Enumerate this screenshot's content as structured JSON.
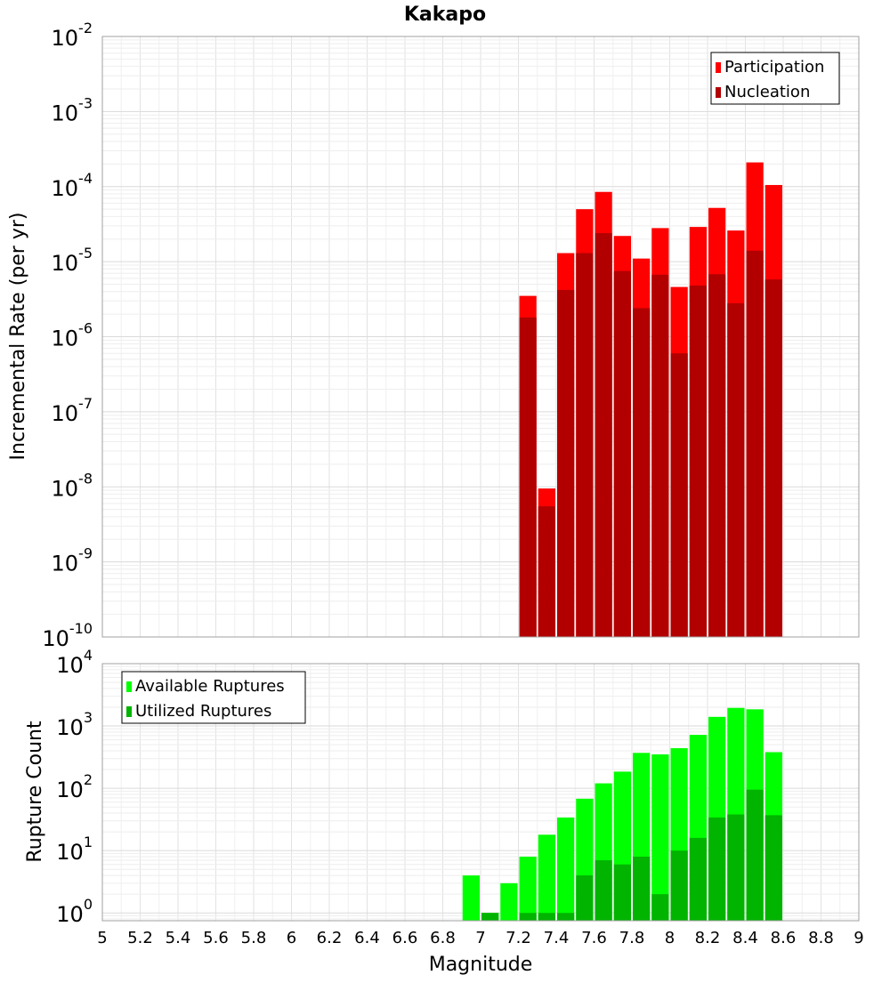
{
  "chart_data": [
    {
      "type": "bar",
      "title": "Kakapo",
      "ylabel": "Incremental Rate (per yr)",
      "yscale": "log",
      "ylim": [
        1e-10,
        0.01
      ],
      "xlim": [
        5,
        9
      ],
      "bin_width": 0.1,
      "legend_position": "top-right",
      "series": [
        {
          "name": "Participation",
          "color": "#ff0000",
          "x": [
            7.25,
            7.35,
            7.45,
            7.55,
            7.65,
            7.75,
            7.85,
            7.95,
            8.05,
            8.15,
            8.25,
            8.35,
            8.45,
            8.55
          ],
          "values": [
            3.5e-06,
            9.5e-09,
            1.3e-05,
            5e-05,
            8.5e-05,
            2.2e-05,
            1.1e-05,
            2.8e-05,
            4.6e-06,
            2.9e-05,
            5.2e-05,
            2.6e-05,
            0.00021,
            0.000105
          ]
        },
        {
          "name": "Nucleation",
          "color": "#b20000",
          "x": [
            7.25,
            7.35,
            7.45,
            7.55,
            7.65,
            7.75,
            7.85,
            7.95,
            8.05,
            8.15,
            8.25,
            8.35,
            8.45,
            8.55
          ],
          "values": [
            1.8e-06,
            5.5e-09,
            4.2e-06,
            1.3e-05,
            2.4e-05,
            7.5e-06,
            2.4e-06,
            6.7e-06,
            6e-07,
            4.8e-06,
            6.8e-06,
            2.8e-06,
            1.4e-05,
            5.8e-06
          ]
        }
      ],
      "yticks": [
        {
          "base": "10",
          "exp": "-2"
        },
        {
          "base": "10",
          "exp": "-3"
        },
        {
          "base": "10",
          "exp": "-4"
        },
        {
          "base": "10",
          "exp": "-5"
        },
        {
          "base": "10",
          "exp": "-6"
        },
        {
          "base": "10",
          "exp": "-7"
        },
        {
          "base": "10",
          "exp": "-8"
        },
        {
          "base": "10",
          "exp": "-9"
        },
        {
          "base": "10",
          "exp": "-10"
        }
      ],
      "grid": true
    },
    {
      "type": "bar",
      "ylabel": "Rupture Count",
      "xlabel": "Magnitude",
      "yscale": "log",
      "ylim": [
        0.75,
        10000
      ],
      "xlim": [
        5,
        9
      ],
      "bin_width": 0.1,
      "legend_position": "top-left",
      "series": [
        {
          "name": "Available Ruptures",
          "color": "#00ff00",
          "x": [
            6.95,
            7.05,
            7.15,
            7.25,
            7.35,
            7.45,
            7.55,
            7.65,
            7.75,
            7.85,
            7.95,
            8.05,
            8.15,
            8.25,
            8.35,
            8.45,
            8.55
          ],
          "values": [
            4,
            1,
            3,
            8,
            18,
            34,
            68,
            120,
            185,
            370,
            350,
            440,
            720,
            1400,
            1950,
            1850,
            380
          ]
        },
        {
          "name": "Utilized Ruptures",
          "color": "#00b400",
          "x": [
            7.05,
            7.25,
            7.35,
            7.45,
            7.55,
            7.65,
            7.75,
            7.85,
            7.95,
            8.05,
            8.15,
            8.25,
            8.35,
            8.45,
            8.55
          ],
          "values": [
            1,
            1,
            1,
            1,
            4,
            7,
            6,
            8,
            2,
            10,
            16,
            34,
            38,
            95,
            37
          ]
        }
      ],
      "yticks": [
        {
          "base": "10",
          "exp": "4"
        },
        {
          "base": "10",
          "exp": "3"
        },
        {
          "base": "10",
          "exp": "2"
        },
        {
          "base": "10",
          "exp": "1"
        },
        {
          "base": "10",
          "exp": "0"
        }
      ],
      "xticks": [
        "5",
        "5.2",
        "5.4",
        "5.6",
        "5.8",
        "6",
        "6.2",
        "6.4",
        "6.6",
        "6.8",
        "7",
        "7.2",
        "7.4",
        "7.6",
        "7.8",
        "8",
        "8.2",
        "8.4",
        "8.6",
        "8.8",
        "9"
      ],
      "grid": true
    }
  ]
}
